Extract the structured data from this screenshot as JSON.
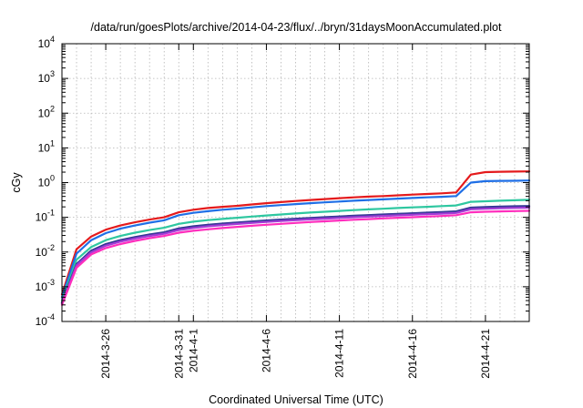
{
  "chart_data": {
    "type": "line",
    "title": "/data/run/goesPlots/archive/2014-04-23/flux/../bryn/31daysMoonAccumulated.plot",
    "xlabel": "Coordinated Universal Time (UTC)",
    "ylabel": "cGy",
    "y_scale": "log",
    "ylim": [
      0.0001,
      10000
    ],
    "y_tick_mantissa": "10",
    "y_ticks": [
      {
        "exp": "-4",
        "value": 0.0001
      },
      {
        "exp": "-3",
        "value": 0.001
      },
      {
        "exp": "-2",
        "value": 0.01
      },
      {
        "exp": "-1",
        "value": 0.1
      },
      {
        "exp": "0",
        "value": 1
      },
      {
        "exp": "1",
        "value": 10
      },
      {
        "exp": "2",
        "value": 100
      },
      {
        "exp": "3",
        "value": 1000
      },
      {
        "exp": "4",
        "value": 10000
      }
    ],
    "xlim": [
      "2014-03-23",
      "2014-04-24"
    ],
    "x_ticks": [
      {
        "label": "2014-3-26",
        "date": "2014-03-26"
      },
      {
        "label": "2014-3-31",
        "date": "2014-03-31"
      },
      {
        "label": "2014-4-1",
        "date": "2014-04-01"
      },
      {
        "label": "2014-4-6",
        "date": "2014-04-06"
      },
      {
        "label": "2014-4-11",
        "date": "2014-04-11"
      },
      {
        "label": "2014-4-16",
        "date": "2014-04-16"
      },
      {
        "label": "2014-4-21",
        "date": "2014-04-21"
      }
    ],
    "grid": true,
    "x": [
      "2014-03-23",
      "2014-03-24",
      "2014-03-25",
      "2014-03-26",
      "2014-03-27",
      "2014-03-28",
      "2014-03-29",
      "2014-03-30",
      "2014-03-31",
      "2014-04-01",
      "2014-04-02",
      "2014-04-03",
      "2014-04-04",
      "2014-04-05",
      "2014-04-06",
      "2014-04-07",
      "2014-04-08",
      "2014-04-09",
      "2014-04-10",
      "2014-04-11",
      "2014-04-12",
      "2014-04-13",
      "2014-04-14",
      "2014-04-15",
      "2014-04-16",
      "2014-04-17",
      "2014-04-18",
      "2014-04-19",
      "2014-04-20",
      "2014-04-21",
      "2014-04-22",
      "2014-04-23",
      "2014-04-24"
    ],
    "series": [
      {
        "color": "#e41a1c",
        "values": [
          0.0006,
          0.012,
          0.028,
          0.044,
          0.058,
          0.072,
          0.086,
          0.1,
          0.14,
          0.165,
          0.185,
          0.2,
          0.215,
          0.235,
          0.255,
          0.275,
          0.295,
          0.315,
          0.335,
          0.355,
          0.375,
          0.395,
          0.41,
          0.43,
          0.45,
          0.47,
          0.49,
          0.52,
          1.7,
          2.0,
          2.05,
          2.08,
          2.1
        ]
      },
      {
        "color": "#1f6fe6",
        "values": [
          0.0005,
          0.009,
          0.022,
          0.035,
          0.047,
          0.058,
          0.07,
          0.082,
          0.115,
          0.135,
          0.15,
          0.165,
          0.178,
          0.193,
          0.21,
          0.225,
          0.24,
          0.255,
          0.27,
          0.285,
          0.3,
          0.315,
          0.33,
          0.345,
          0.36,
          0.375,
          0.39,
          0.41,
          1.0,
          1.1,
          1.12,
          1.13,
          1.15
        ]
      },
      {
        "color": "#2ec7a0",
        "values": [
          0.0004,
          0.006,
          0.014,
          0.022,
          0.029,
          0.036,
          0.043,
          0.05,
          0.065,
          0.075,
          0.083,
          0.09,
          0.097,
          0.105,
          0.113,
          0.121,
          0.129,
          0.137,
          0.145,
          0.153,
          0.161,
          0.169,
          0.177,
          0.185,
          0.193,
          0.201,
          0.21,
          0.22,
          0.28,
          0.29,
          0.3,
          0.31,
          0.32
        ]
      },
      {
        "color": "#2b2d8f",
        "values": [
          0.00035,
          0.0045,
          0.011,
          0.017,
          0.022,
          0.027,
          0.032,
          0.037,
          0.048,
          0.055,
          0.061,
          0.066,
          0.071,
          0.076,
          0.081,
          0.086,
          0.091,
          0.096,
          0.101,
          0.106,
          0.111,
          0.116,
          0.121,
          0.126,
          0.131,
          0.136,
          0.141,
          0.148,
          0.19,
          0.198,
          0.203,
          0.208,
          0.212
        ]
      },
      {
        "color": "#3a3a9a",
        "values": [
          0.00034,
          0.0043,
          0.0105,
          0.016,
          0.021,
          0.026,
          0.031,
          0.036,
          0.046,
          0.053,
          0.059,
          0.064,
          0.069,
          0.074,
          0.079,
          0.084,
          0.089,
          0.094,
          0.099,
          0.104,
          0.109,
          0.114,
          0.119,
          0.124,
          0.129,
          0.134,
          0.139,
          0.146,
          0.185,
          0.193,
          0.198,
          0.203,
          0.207
        ]
      },
      {
        "color": "#a33bd6",
        "values": [
          0.00032,
          0.0041,
          0.0098,
          0.0152,
          0.02,
          0.0245,
          0.029,
          0.0335,
          0.043,
          0.0495,
          0.055,
          0.06,
          0.0645,
          0.069,
          0.0735,
          0.078,
          0.0825,
          0.087,
          0.0915,
          0.096,
          0.1005,
          0.105,
          0.1095,
          0.114,
          0.1185,
          0.123,
          0.1275,
          0.134,
          0.17,
          0.177,
          0.182,
          0.186,
          0.19
        ]
      },
      {
        "color": "#ff2ebd",
        "values": [
          0.0003,
          0.0035,
          0.0085,
          0.013,
          0.017,
          0.021,
          0.025,
          0.029,
          0.036,
          0.041,
          0.045,
          0.049,
          0.053,
          0.057,
          0.061,
          0.065,
          0.069,
          0.073,
          0.077,
          0.081,
          0.085,
          0.089,
          0.093,
          0.097,
          0.101,
          0.105,
          0.109,
          0.115,
          0.14,
          0.145,
          0.148,
          0.151,
          0.154
        ]
      }
    ]
  }
}
